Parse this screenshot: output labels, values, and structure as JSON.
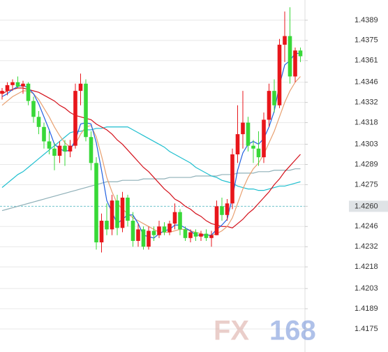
{
  "chart_data": {
    "type": "candlestick",
    "ylim": [
      1.4159,
      1.4403
    ],
    "yticks": [
      1.4389,
      1.4375,
      1.4361,
      1.4346,
      1.4332,
      1.4318,
      1.4303,
      1.4289,
      1.4275,
      {
        "value": 1.426,
        "label": "1.4260"
      },
      1.4246,
      1.4232,
      1.4218,
      1.4203,
      1.4189,
      1.4175
    ],
    "grid": true,
    "current_price_tick": 9,
    "up_color": "#e8161b",
    "down_color": "#38d838",
    "open": [
      1.4338,
      1.434,
      1.4344,
      1.4346,
      1.4343,
      1.4345,
      1.4333,
      1.4322,
      1.4315,
      1.4305,
      1.43,
      1.4295,
      1.4302,
      1.4298,
      1.4302,
      1.434,
      1.4345,
      1.4308,
      1.429,
      1.4235,
      1.425,
      1.4244,
      1.4264,
      1.4245,
      1.4266,
      1.425,
      1.4236,
      1.4244,
      1.4232,
      1.4243,
      1.424,
      1.4246,
      1.4242,
      1.4248,
      1.4256,
      1.4244,
      1.4238,
      1.4242,
      1.4239,
      1.4241,
      1.4238,
      1.424,
      1.426,
      1.4254,
      1.4262,
      1.4296,
      1.431,
      1.4318,
      1.4302,
      1.43,
      1.4294,
      1.432,
      1.434,
      1.433,
      1.4372,
      1.4378,
      1.435,
      1.4368
    ],
    "high": [
      1.4342,
      1.4346,
      1.4348,
      1.435,
      1.4347,
      1.4346,
      1.4336,
      1.4326,
      1.4318,
      1.4312,
      1.4304,
      1.4305,
      1.4306,
      1.4306,
      1.4345,
      1.4352,
      1.4348,
      1.4312,
      1.4294,
      1.4255,
      1.4262,
      1.4268,
      1.4268,
      1.427,
      1.4268,
      1.4256,
      1.4248,
      1.4246,
      1.4246,
      1.4246,
      1.425,
      1.4249,
      1.425,
      1.4262,
      1.4258,
      1.4246,
      1.4244,
      1.4244,
      1.4243,
      1.4244,
      1.4243,
      1.4264,
      1.4266,
      1.4265,
      1.43,
      1.433,
      1.434,
      1.4322,
      1.4306,
      1.4312,
      1.4325,
      1.4345,
      1.4348,
      1.4376,
      1.4395,
      1.4398,
      1.437,
      1.437
    ],
    "low": [
      1.4334,
      1.4337,
      1.434,
      1.4342,
      1.4338,
      1.433,
      1.4318,
      1.431,
      1.43,
      1.4296,
      1.4285,
      1.429,
      1.4288,
      1.4294,
      1.43,
      1.433,
      1.4305,
      1.4285,
      1.423,
      1.4228,
      1.424,
      1.424,
      1.424,
      1.4242,
      1.4246,
      1.4232,
      1.4232,
      1.423,
      1.423,
      1.4236,
      1.4238,
      1.424,
      1.424,
      1.4244,
      1.424,
      1.4236,
      1.4235,
      1.4236,
      1.4236,
      1.4236,
      1.4232,
      1.424,
      1.425,
      1.425,
      1.4258,
      1.429,
      1.43,
      1.4298,
      1.429,
      1.4288,
      1.429,
      1.4315,
      1.4325,
      1.4328,
      1.436,
      1.4345,
      1.4346,
      1.436
    ],
    "close": [
      1.434,
      1.4344,
      1.4346,
      1.4343,
      1.4345,
      1.4333,
      1.4322,
      1.4315,
      1.4305,
      1.43,
      1.4295,
      1.4302,
      1.4298,
      1.4302,
      1.434,
      1.4345,
      1.4308,
      1.429,
      1.4235,
      1.425,
      1.4244,
      1.4264,
      1.4245,
      1.4266,
      1.425,
      1.4236,
      1.4244,
      1.4232,
      1.4243,
      1.424,
      1.4246,
      1.4242,
      1.4248,
      1.4256,
      1.4244,
      1.4238,
      1.4242,
      1.4239,
      1.4241,
      1.4238,
      1.424,
      1.426,
      1.4254,
      1.4262,
      1.4296,
      1.431,
      1.4318,
      1.4302,
      1.43,
      1.4294,
      1.432,
      1.434,
      1.433,
      1.4372,
      1.4378,
      1.435,
      1.4368,
      1.4364
    ],
    "lines": [
      {
        "color": "#8fb0b8",
        "values": [
          1.4257,
          1.4258,
          1.4259,
          1.426,
          1.4261,
          1.4262,
          1.4263,
          1.4264,
          1.4265,
          1.4266,
          1.4267,
          1.4268,
          1.4269,
          1.427,
          1.4271,
          1.4272,
          1.4273,
          1.4274,
          1.4275,
          1.4276,
          1.4277,
          1.4277,
          1.4277,
          1.4278,
          1.4278,
          1.4278,
          1.4278,
          1.4279,
          1.4279,
          1.4279,
          1.4279,
          1.4279,
          1.428,
          1.428,
          1.428,
          1.428,
          1.428,
          1.4281,
          1.4281,
          1.4281,
          1.4281,
          1.4281,
          1.4282,
          1.4282,
          1.4282,
          1.4283,
          1.4283,
          1.4283,
          1.4283,
          1.4284,
          1.4284,
          1.4284,
          1.4285,
          1.4285,
          1.4285,
          1.4285,
          1.4286,
          1.4286
        ]
      },
      {
        "color": "#1fbfcf",
        "values": [
          1.4273,
          1.4276,
          1.4279,
          1.4282,
          1.4284,
          1.4287,
          1.429,
          1.4293,
          1.4296,
          1.4299,
          1.4302,
          1.4305,
          1.4308,
          1.4311,
          1.4312,
          1.4312,
          1.4313,
          1.4313,
          1.4314,
          1.4314,
          1.4315,
          1.4315,
          1.4315,
          1.4315,
          1.4315,
          1.4313,
          1.4311,
          1.4309,
          1.4307,
          1.4305,
          1.4303,
          1.4301,
          1.4298,
          1.4296,
          1.4294,
          1.4292,
          1.429,
          1.4287,
          1.4285,
          1.4283,
          1.4281,
          1.428,
          1.4278,
          1.4277,
          1.4276,
          1.4274,
          1.4273,
          1.4272,
          1.4272,
          1.4271,
          1.4271,
          1.4272,
          1.4273,
          1.4274,
          1.4274,
          1.4275,
          1.4276,
          1.4277
        ]
      },
      {
        "color": "#d4101a",
        "values": [
          1.4338,
          1.434,
          1.4341,
          1.4342,
          1.4342,
          1.4341,
          1.434,
          1.4339,
          1.4337,
          1.4335,
          1.4333,
          1.433,
          1.4328,
          1.4325,
          1.4323,
          1.4322,
          1.4321,
          1.432,
          1.4317,
          1.4315,
          1.4313,
          1.431,
          1.4306,
          1.4303,
          1.4299,
          1.4295,
          1.4291,
          1.4287,
          1.4284,
          1.428,
          1.4276,
          1.4272,
          1.4269,
          1.4265,
          1.4263,
          1.426,
          1.4258,
          1.4255,
          1.4253,
          1.425,
          1.4248,
          1.4247,
          1.4246,
          1.4246,
          1.4245,
          1.4248,
          1.4251,
          1.4255,
          1.4258,
          1.4262,
          1.4266,
          1.427,
          1.4275,
          1.4279,
          1.4284,
          1.4288,
          1.4292,
          1.4296
        ]
      },
      {
        "color": "#e8a070",
        "values": [
          1.433,
          1.4333,
          1.4336,
          1.4338,
          1.434,
          1.434,
          1.4338,
          1.4334,
          1.4328,
          1.4322,
          1.4315,
          1.4309,
          1.4304,
          1.4301,
          1.4303,
          1.431,
          1.4315,
          1.4316,
          1.4308,
          1.4295,
          1.428,
          1.427,
          1.4262,
          1.4258,
          1.4255,
          1.4252,
          1.425,
          1.4248,
          1.4246,
          1.4244,
          1.4242,
          1.4242,
          1.4242,
          1.4243,
          1.4244,
          1.4244,
          1.4243,
          1.4242,
          1.4241,
          1.424,
          1.424,
          1.4241,
          1.4243,
          1.4246,
          1.4252,
          1.4262,
          1.4272,
          1.428,
          1.4286,
          1.429,
          1.4296,
          1.4304,
          1.4312,
          1.4322,
          1.4332,
          1.434,
          1.4346,
          1.435
        ]
      },
      {
        "color": "#2060e0",
        "values": [
          1.4336,
          1.4338,
          1.4341,
          1.4343,
          1.4344,
          1.4342,
          1.4338,
          1.4331,
          1.4322,
          1.4313,
          1.4303,
          1.43,
          1.4298,
          1.4299,
          1.4306,
          1.4317,
          1.4318,
          1.4317,
          1.4304,
          1.4285,
          1.4264,
          1.4256,
          1.4248,
          1.4251,
          1.4254,
          1.4254,
          1.4248,
          1.424,
          1.4239,
          1.4238,
          1.4241,
          1.4243,
          1.4244,
          1.4247,
          1.4247,
          1.4245,
          1.4243,
          1.424,
          1.424,
          1.424,
          1.424,
          1.4244,
          1.4247,
          1.4251,
          1.4266,
          1.4285,
          1.4297,
          1.4303,
          1.4305,
          1.4303,
          1.4307,
          1.4315,
          1.4326,
          1.4344,
          1.4358,
          1.4361,
          1.4366,
          1.4366
        ]
      }
    ]
  },
  "watermark": {
    "left": "FX",
    "right": "168"
  }
}
